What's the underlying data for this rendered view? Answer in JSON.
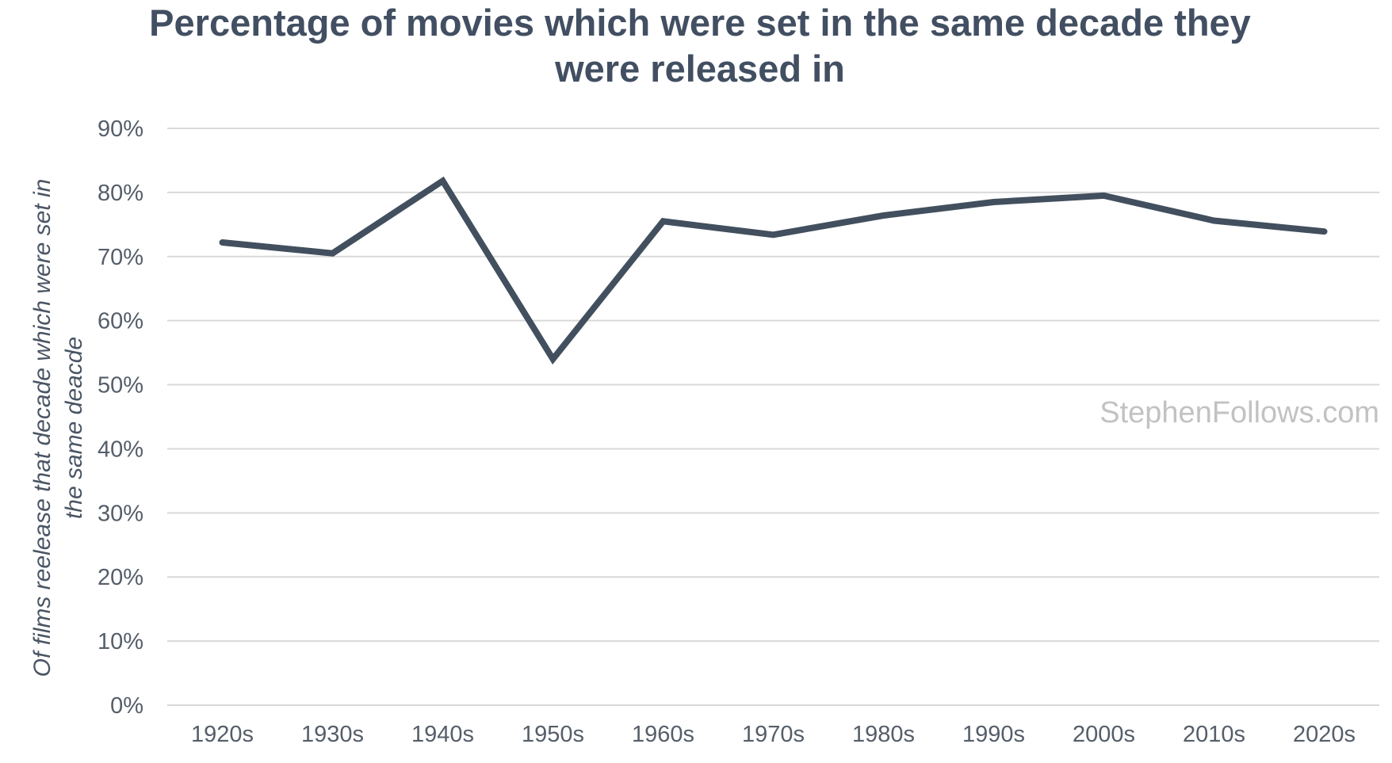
{
  "chart_data": {
    "type": "line",
    "title_lines": [
      "Percentage of movies which were set in the same decade they",
      "were released in"
    ],
    "xlabel": "",
    "ylabel_lines": [
      "Of films reelease that decade which  were set in",
      "the same deacde"
    ],
    "categories": [
      "1920s",
      "1930s",
      "1940s",
      "1950s",
      "1960s",
      "1970s",
      "1980s",
      "1990s",
      "2000s",
      "2010s",
      "2020s"
    ],
    "values": [
      72.2,
      70.5,
      81.8,
      54.0,
      75.5,
      73.4,
      76.4,
      78.5,
      79.5,
      75.6,
      73.9
    ],
    "ylim": [
      0,
      90
    ],
    "yticks": [
      0,
      10,
      20,
      30,
      40,
      50,
      60,
      70,
      80,
      90
    ],
    "ytick_labels": [
      "0%",
      "10%",
      "20%",
      "30%",
      "40%",
      "50%",
      "60%",
      "70%",
      "80%",
      "90%"
    ],
    "grid": true,
    "legend": "none",
    "line_color": "#424f5e"
  },
  "watermark": {
    "main": "StephenFollows",
    "suffix": ".com"
  }
}
